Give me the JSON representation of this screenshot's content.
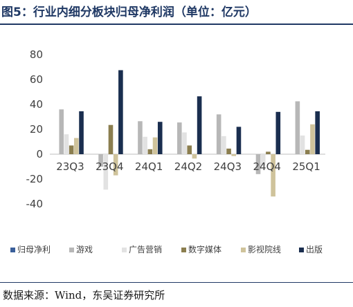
{
  "figure": {
    "title": "图5：行业内细分板块归母净利润（单位：亿元）",
    "source": "数据来源：Wind，东吴证券研究所"
  },
  "chart_data": {
    "type": "bar",
    "title": "",
    "xlabel": "",
    "ylabel": "",
    "ylim": [
      -40,
      80
    ],
    "yticks": [
      80,
      60,
      40,
      20,
      0,
      -20,
      -40
    ],
    "grid": false,
    "legend_position": "bottom",
    "categories": [
      "23Q3",
      "23Q4",
      "24Q1",
      "24Q2",
      "24Q3",
      "24Q4",
      "25Q1"
    ],
    "series": [
      {
        "name": "归母净利",
        "color": "#3a5f9a",
        "values": [
          0,
          0,
          0,
          0,
          0,
          0,
          0
        ]
      },
      {
        "name": "游戏",
        "color": "#b7b7b7",
        "values": [
          36,
          -10,
          26.5,
          25.5,
          32,
          -16,
          42.5
        ]
      },
      {
        "name": "广告营销",
        "color": "#e2e2e2",
        "values": [
          16,
          -28.5,
          14,
          17.5,
          14.5,
          -9,
          15
        ]
      },
      {
        "name": "数字媒体",
        "color": "#8b7e4f",
        "values": [
          7,
          23.5,
          4,
          7,
          4.5,
          2,
          3.5
        ]
      },
      {
        "name": "影视院线",
        "color": "#cfc39b",
        "values": [
          13,
          -17,
          13.5,
          -3.5,
          -1.5,
          -34,
          24
        ]
      },
      {
        "name": "出版",
        "color": "#1a2e4f",
        "values": [
          34.5,
          67.5,
          26,
          46.5,
          22,
          34,
          34.5
        ]
      }
    ]
  }
}
